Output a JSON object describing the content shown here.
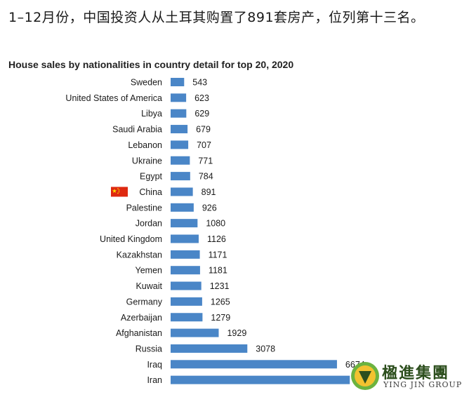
{
  "headline": "1–12月份，中国投资人从土耳其购置了891套房产，位列第十三名。",
  "logo": {
    "name_cn": "楹進集團",
    "name_en": "YING JIN GROUP"
  },
  "colors": {
    "bar": "#4a86c7",
    "highlight_flag": "#de2910"
  },
  "chart_data": {
    "type": "bar",
    "orientation": "horizontal",
    "title": "House sales by nationalities in country detail for top 20, 2020",
    "xlabel": "",
    "ylabel": "",
    "categories": [
      "Sweden",
      "United States of America",
      "Libya",
      "Saudi Arabia",
      "Lebanon",
      "Ukraine",
      "Egypt",
      "China",
      "Palestine",
      "Jordan",
      "United Kingdom",
      "Kazakhstan",
      "Yemen",
      "Kuwait",
      "Germany",
      "Azerbaijan",
      "Afghanistan",
      "Russia",
      "Iraq",
      "Iran"
    ],
    "values": [
      543,
      623,
      629,
      679,
      707,
      771,
      784,
      891,
      926,
      1080,
      1126,
      1171,
      1181,
      1231,
      1265,
      1279,
      1929,
      3078,
      6674,
      7189
    ],
    "value_labels": [
      "543",
      "623",
      "629",
      "679",
      "707",
      "771",
      "784",
      "891",
      "926",
      "1080",
      "1126",
      "1171",
      "1181",
      "1231",
      "1265",
      "1279",
      "1929",
      "3078",
      "6674",
      ""
    ],
    "highlight": {
      "category": "China",
      "icon": "china-flag-icon"
    },
    "grid": false,
    "legend": "none"
  }
}
